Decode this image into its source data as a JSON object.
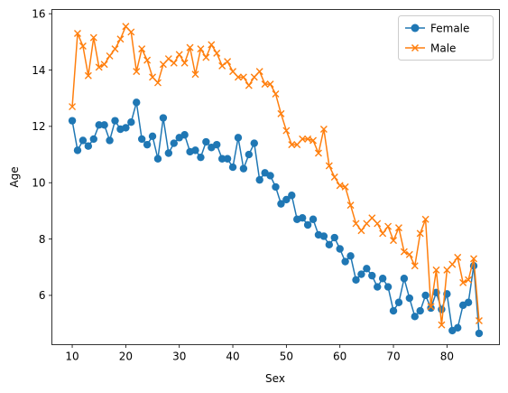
{
  "chart_data": {
    "type": "line",
    "title": "",
    "xlabel": "Sex",
    "ylabel": "Age",
    "xlim": [
      6.2,
      89.8
    ],
    "ylim": [
      4.25,
      16.15
    ],
    "xticks": [
      10,
      20,
      30,
      40,
      50,
      60,
      70,
      80
    ],
    "yticks": [
      6,
      8,
      10,
      12,
      14,
      16
    ],
    "grid": false,
    "legend": "top-right",
    "series": [
      {
        "name": "Female",
        "color": "#1f77b4",
        "marker": "circle",
        "x": [
          10,
          11,
          12,
          13,
          14,
          15,
          16,
          17,
          18,
          19,
          20,
          21,
          22,
          23,
          24,
          25,
          26,
          27,
          28,
          29,
          30,
          31,
          32,
          33,
          34,
          35,
          36,
          37,
          38,
          39,
          40,
          41,
          42,
          43,
          44,
          45,
          46,
          47,
          48,
          49,
          50,
          51,
          52,
          53,
          54,
          55,
          56,
          57,
          58,
          59,
          60,
          61,
          62,
          63,
          64,
          65,
          66,
          67,
          68,
          69,
          70,
          71,
          72,
          73,
          74,
          75,
          76,
          77,
          78,
          79,
          80,
          81,
          82,
          83,
          84,
          85,
          86
        ],
        "y": [
          12.2,
          11.15,
          11.5,
          11.3,
          11.55,
          12.05,
          12.05,
          11.5,
          12.2,
          11.9,
          11.95,
          12.15,
          12.85,
          11.55,
          11.35,
          11.65,
          10.85,
          12.3,
          11.05,
          11.4,
          11.6,
          11.7,
          11.1,
          11.15,
          10.9,
          11.45,
          11.25,
          11.35,
          10.85,
          10.85,
          10.55,
          11.6,
          10.5,
          11.0,
          11.4,
          10.1,
          10.35,
          10.25,
          9.85,
          9.25,
          9.4,
          9.55,
          8.7,
          8.75,
          8.5,
          8.7,
          8.15,
          8.1,
          7.8,
          8.05,
          7.65,
          7.2,
          7.4,
          6.55,
          6.75,
          6.95,
          6.7,
          6.3,
          6.6,
          6.3,
          5.45,
          5.75,
          6.6,
          5.9,
          5.25,
          5.45,
          6.0,
          5.55,
          6.1,
          5.5,
          6.05,
          4.75,
          4.85,
          5.65,
          5.75,
          7.05,
          4.65
        ]
      },
      {
        "name": "Male",
        "color": "#ff7f0e",
        "marker": "x",
        "x": [
          10,
          11,
          12,
          13,
          14,
          15,
          16,
          17,
          18,
          19,
          20,
          21,
          22,
          23,
          24,
          25,
          26,
          27,
          28,
          29,
          30,
          31,
          32,
          33,
          34,
          35,
          36,
          37,
          38,
          39,
          40,
          41,
          42,
          43,
          44,
          45,
          46,
          47,
          48,
          49,
          50,
          51,
          52,
          53,
          54,
          55,
          56,
          57,
          58,
          59,
          60,
          61,
          62,
          63,
          64,
          65,
          66,
          67,
          68,
          69,
          70,
          71,
          72,
          73,
          74,
          75,
          76,
          77,
          78,
          79,
          80,
          81,
          82,
          83,
          84,
          85,
          86
        ],
        "y": [
          12.7,
          15.3,
          14.85,
          13.8,
          15.15,
          14.1,
          14.2,
          14.5,
          14.75,
          15.1,
          15.55,
          15.35,
          13.95,
          14.75,
          14.35,
          13.75,
          13.55,
          14.2,
          14.4,
          14.25,
          14.55,
          14.25,
          14.8,
          13.85,
          14.75,
          14.45,
          14.9,
          14.6,
          14.15,
          14.3,
          13.95,
          13.75,
          13.75,
          13.45,
          13.75,
          13.95,
          13.5,
          13.5,
          13.15,
          12.45,
          11.85,
          11.35,
          11.35,
          11.55,
          11.55,
          11.5,
          11.05,
          11.9,
          10.6,
          10.2,
          9.9,
          9.85,
          9.2,
          8.55,
          8.3,
          8.55,
          8.75,
          8.55,
          8.2,
          8.45,
          7.95,
          8.4,
          7.55,
          7.45,
          7.05,
          8.2,
          8.7,
          5.6,
          6.9,
          4.95,
          6.9,
          7.1,
          7.35,
          6.45,
          6.55,
          7.3,
          5.1
        ]
      }
    ]
  }
}
